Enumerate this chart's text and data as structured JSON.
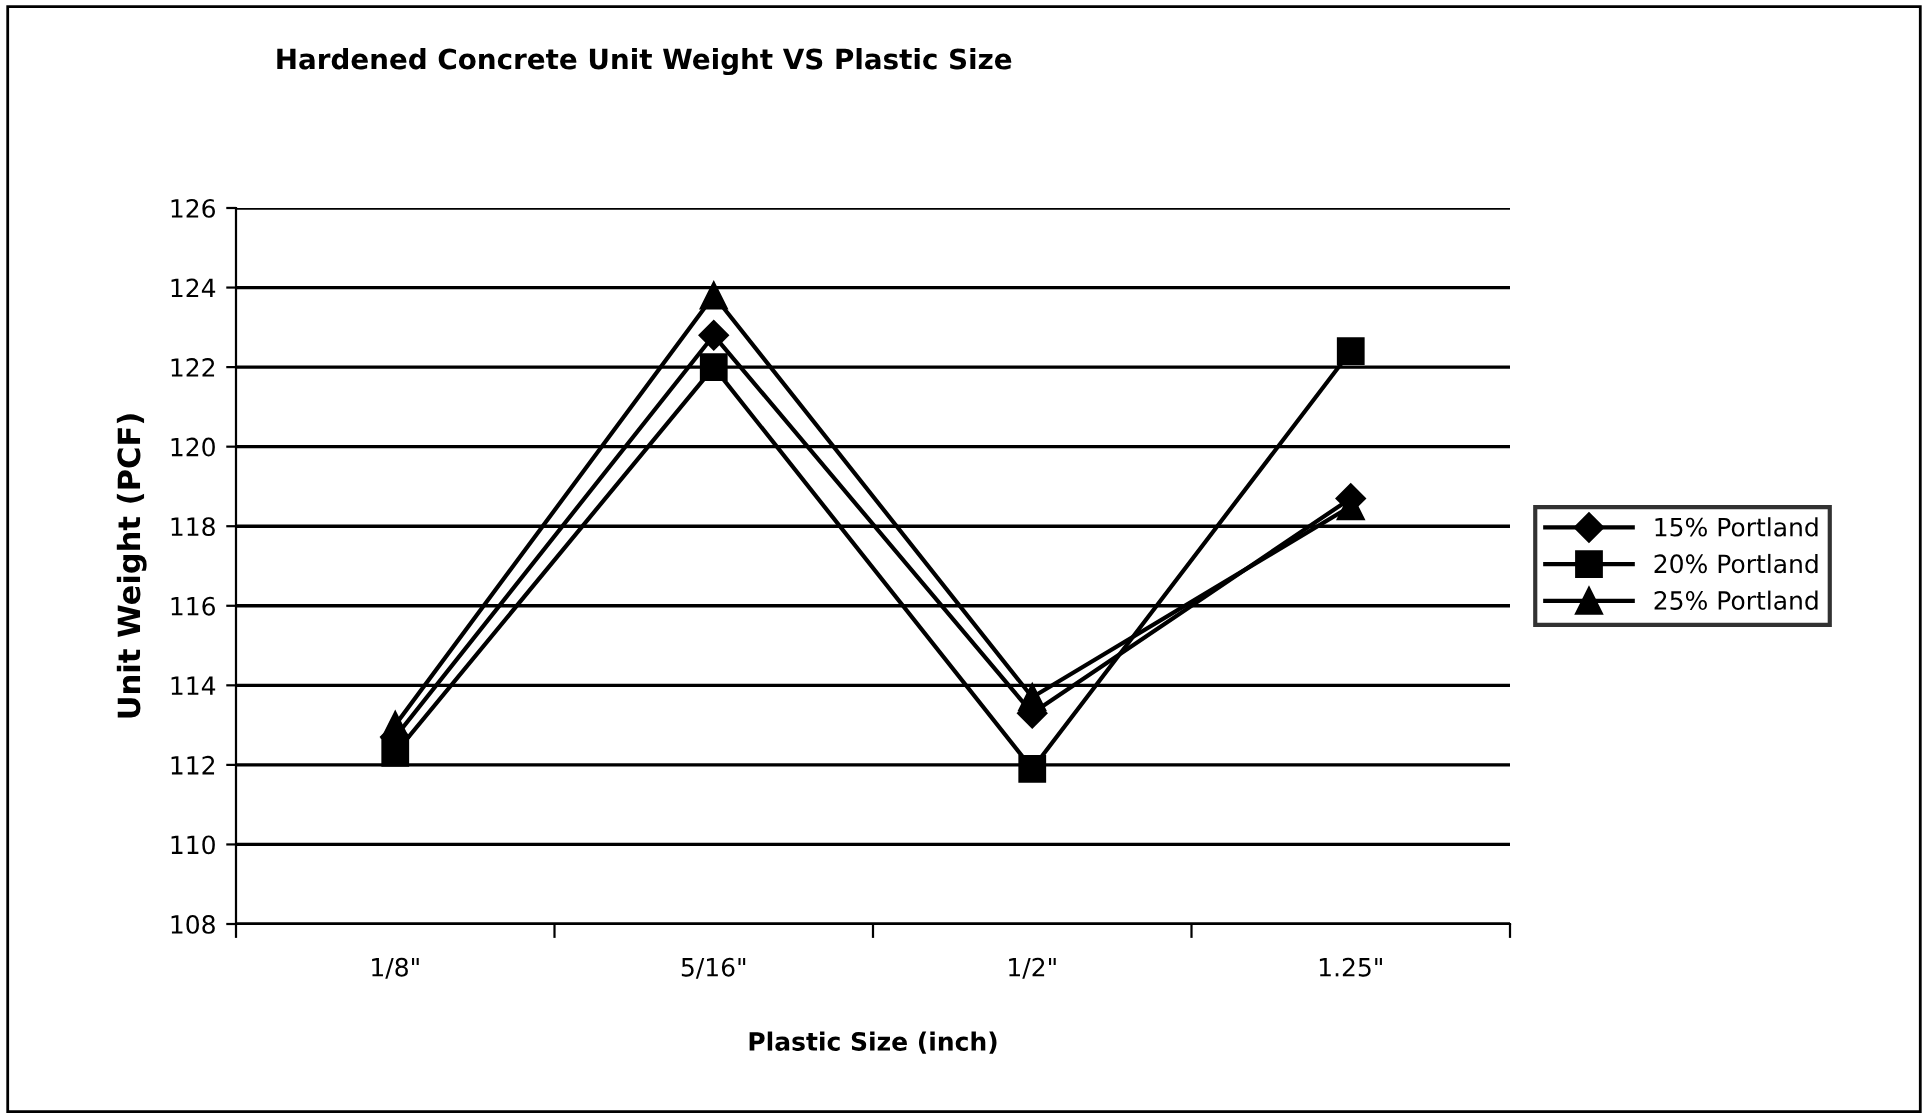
{
  "chart_data": {
    "type": "line",
    "title": "Hardened Concrete Unit Weight VS Plastic Size",
    "xlabel": "Plastic Size (inch)",
    "ylabel": "Unit Weight (PCF)",
    "categories": [
      "1/8\"",
      "5/16\"",
      "1/2\"",
      "1.25\""
    ],
    "series": [
      {
        "name": "15% Portland",
        "color": "#000000",
        "marker": "diamond",
        "values": [
          112.7,
          122.8,
          113.3,
          118.7
        ]
      },
      {
        "name": "20% Portland",
        "color": "#000000",
        "marker": "square",
        "values": [
          112.3,
          122.0,
          111.9,
          122.4
        ]
      },
      {
        "name": "25% Portland",
        "color": "#000000",
        "marker": "triangle",
        "values": [
          113.0,
          123.8,
          113.7,
          118.5
        ]
      }
    ],
    "ylim": [
      108,
      126
    ],
    "yticks": [
      108,
      110,
      112,
      114,
      116,
      118,
      120,
      122,
      124,
      126
    ],
    "grid": "y",
    "legend": "right",
    "line_style": "solid"
  }
}
